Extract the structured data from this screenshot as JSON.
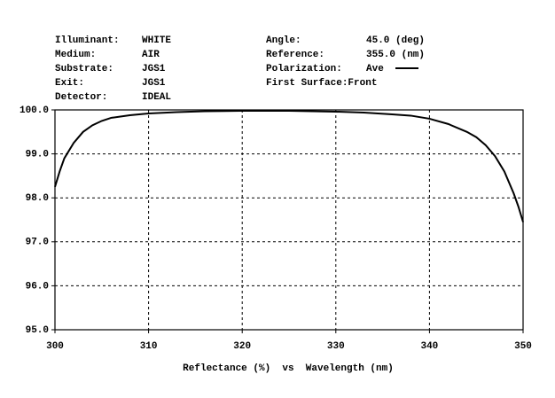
{
  "chart_data": {
    "type": "line",
    "xlabel": "Reflectance (%)  vs  Wavelength (nm)",
    "info": {
      "left": [
        [
          "Illuminant:",
          "WHITE"
        ],
        [
          "Medium:",
          "AIR"
        ],
        [
          "Substrate:",
          "JGS1"
        ],
        [
          "Exit:",
          "JGS1"
        ],
        [
          "Detector:",
          "IDEAL"
        ]
      ],
      "right": [
        [
          "Angle:",
          "45.0 (deg)"
        ],
        [
          "Reference:",
          "355.0 (nm)"
        ],
        [
          "Polarization:"
        ],
        [
          "First Surface:Front"
        ]
      ]
    },
    "x": [
      300,
      300.5,
      301,
      302,
      303,
      304,
      305,
      306,
      308,
      310,
      313,
      316,
      320,
      325,
      330,
      333,
      336,
      338,
      340,
      342,
      344,
      345,
      346,
      347,
      348,
      349,
      349.5,
      350
    ],
    "series": [
      {
        "name": "Ave",
        "color": "#000000",
        "values": [
          98.25,
          98.6,
          98.9,
          99.25,
          99.5,
          99.65,
          99.75,
          99.82,
          99.88,
          99.92,
          99.95,
          99.97,
          99.98,
          99.98,
          99.96,
          99.94,
          99.9,
          99.87,
          99.8,
          99.68,
          99.5,
          99.38,
          99.2,
          98.95,
          98.6,
          98.1,
          97.8,
          97.45
        ]
      }
    ],
    "xlim": [
      300,
      350
    ],
    "ylim": [
      95,
      100
    ],
    "xticks": [
      300,
      310,
      320,
      330,
      340,
      350
    ],
    "yticks": [
      {
        "value": 95,
        "label": "95.0"
      },
      {
        "value": 96,
        "label": "96.0"
      },
      {
        "value": 97,
        "label": "97.0"
      },
      {
        "value": 98,
        "label": "98.0"
      },
      {
        "value": 99,
        "label": "99.0"
      },
      {
        "value": 100,
        "label": "100.0"
      }
    ],
    "grid": true
  }
}
